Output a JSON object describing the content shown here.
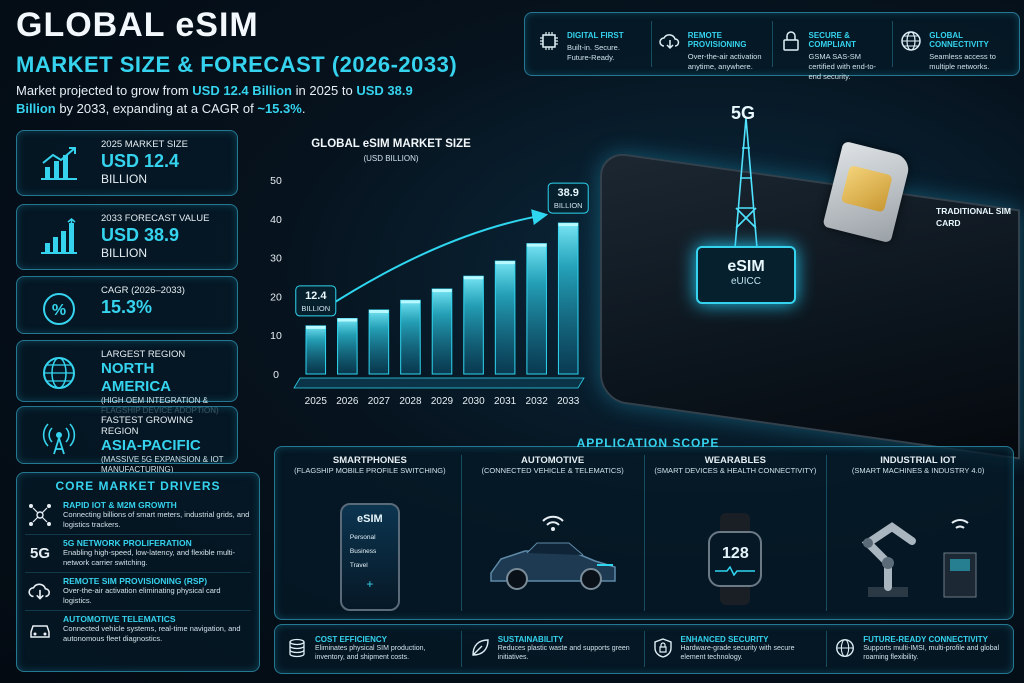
{
  "header": {
    "title": "GLOBAL eSIM",
    "subtitle": "MARKET SIZE & FORECAST (2026-2033)",
    "intro_pre": "Market projected to grow from ",
    "intro_v1": "USD 12.4 Billion",
    "intro_mid": " in 2025 to ",
    "intro_v2": "USD 38.9 Billion",
    "intro_mid2": " by 2033, expanding at a CAGR of ",
    "intro_v3": "~15.3%",
    "intro_end": "."
  },
  "features": [
    {
      "title": "DIGITAL FIRST",
      "desc": "Built-in. Secure. Future-Ready.",
      "icon": "chip-icon"
    },
    {
      "title": "REMOTE PROVISIONING",
      "desc": "Over-the-air activation anytime, anywhere.",
      "icon": "cloud-download-icon"
    },
    {
      "title": "SECURE & COMPLIANT",
      "desc": "GSMA SAS-SM certified with end-to-end security.",
      "icon": "lock-icon"
    },
    {
      "title": "GLOBAL CONNECTIVITY",
      "desc": "Seamless access to multiple networks.",
      "icon": "globe-icon"
    }
  ],
  "stats": [
    {
      "label": "2025 MARKET SIZE",
      "value": "USD 12.4",
      "unit": "BILLION",
      "note": "",
      "icon": "growth-chart-icon"
    },
    {
      "label": "2033 FORECAST VALUE",
      "value": "USD 38.9",
      "unit": "BILLION",
      "note": "",
      "icon": "bar-chart-icon"
    },
    {
      "label": "CAGR (2026–2033)",
      "value": "15.3%",
      "unit": "",
      "note": "",
      "icon": "percent-icon"
    },
    {
      "label": "LARGEST REGION",
      "value": "NORTH AMERICA",
      "unit": "",
      "note": "(HIGH OEM INTEGRATION & FLAGSHIP DEVICE ADOPTION)",
      "icon": "globe-icon"
    },
    {
      "label": "FASTEST GROWING REGION",
      "value": "ASIA-PACIFIC",
      "unit": "",
      "note": "(MASSIVE 5G EXPANSION & IOT MANUFACTURING)",
      "icon": "antenna-icon"
    }
  ],
  "drivers": {
    "heading": "CORE MARKET DRIVERS",
    "items": [
      {
        "title": "RAPID IOT & M2M GROWTH",
        "desc": "Connecting billions of smart meters, industrial grids, and logistics trackers.",
        "icon": "network-nodes-icon"
      },
      {
        "title": "5G NETWORK PROLIFERATION",
        "desc": "Enabling high-speed, low-latency, and flexible multi-network carrier switching.",
        "icon": "5g-icon",
        "icon_text": "5G"
      },
      {
        "title": "REMOTE SIM PROVISIONING (RSP)",
        "desc": "Over-the-air activation eliminating physical card logistics.",
        "icon": "cloud-download-icon"
      },
      {
        "title": "AUTOMOTIVE TELEMATICS",
        "desc": "Connected vehicle systems, real-time navigation, and autonomous fleet diagnostics.",
        "icon": "car-icon"
      }
    ]
  },
  "chart_data": {
    "type": "bar",
    "title": "GLOBAL eSIM MARKET SIZE",
    "subtitle": "(USD BILLION)",
    "categories": [
      "2025",
      "2026",
      "2027",
      "2028",
      "2029",
      "2030",
      "2031",
      "2032",
      "2033"
    ],
    "values": [
      12.4,
      14.3,
      16.5,
      19.0,
      21.9,
      25.2,
      29.1,
      33.6,
      38.9
    ],
    "ylim": [
      0,
      50
    ],
    "yticks": [
      0,
      10,
      20,
      30,
      40,
      50
    ],
    "annotations": [
      {
        "category": "2025",
        "line1": "12.4",
        "line2": "BILLION"
      },
      {
        "category": "2033",
        "line1": "38.9",
        "line2": "BILLION"
      }
    ],
    "bar_color": "#2fd6f0",
    "grid": false
  },
  "illustration": {
    "badge": "5G",
    "chip_line1": "eSIM",
    "chip_line2": "eUICC",
    "sim_label": "TRADITIONAL SIM CARD"
  },
  "applications": {
    "heading": "APPLICATION SCOPE",
    "items": [
      {
        "title": "SMARTPHONES",
        "desc": "(FLAGSHIP MOBILE PROFILE SWITCHING)",
        "screen_title": "eSIM",
        "profiles": [
          "Personal",
          "Business",
          "Travel"
        ],
        "plus": "+"
      },
      {
        "title": "AUTOMOTIVE",
        "desc": "(CONNECTED VEHICLE & TELEMATICS)"
      },
      {
        "title": "WEARABLES",
        "desc": "(SMART DEVICES & HEALTH CONNECTIVITY)",
        "watch_value": "128"
      },
      {
        "title": "INDUSTRIAL IOT",
        "desc": "(SMART MACHINES & INDUSTRY 4.0)"
      }
    ]
  },
  "benefits": [
    {
      "title": "COST EFFICIENCY",
      "desc": "Eliminates physical SIM production, inventory, and shipment costs.",
      "icon": "coins-icon"
    },
    {
      "title": "SUSTAINABILITY",
      "desc": "Reduces plastic waste and supports green initiatives.",
      "icon": "leaf-icon"
    },
    {
      "title": "ENHANCED SECURITY",
      "desc": "Hardware-grade security with secure element technology.",
      "icon": "shield-icon"
    },
    {
      "title": "FUTURE-READY CONNECTIVITY",
      "desc": "Supports multi-IMSI, multi-profile and global roaming flexibility.",
      "icon": "globe-icon"
    }
  ]
}
